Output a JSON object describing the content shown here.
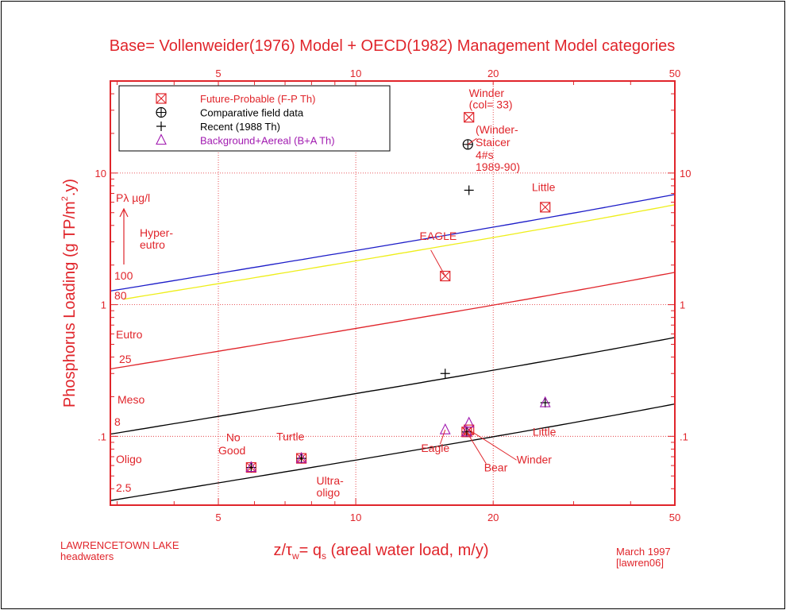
{
  "chart_data": {
    "type": "scatter",
    "title": "Base= Vollenweider(1976) Model + OECD(1982) Management Model categories",
    "xlabel_parts": [
      "z/",
      "τ",
      "w",
      "= q",
      "s",
      " (areal water load, m/y)"
    ],
    "ylabel_parts": [
      "Phosphorus Loading (g TP/m",
      "2",
      ".y)"
    ],
    "xscale": "log",
    "yscale": "log",
    "xlim": [
      2.9,
      50
    ],
    "ylim": [
      0.03,
      50
    ],
    "grid": true,
    "grid_style": "dotted red",
    "xticks": [
      {
        "value": 5,
        "label": "5"
      },
      {
        "value": 10,
        "label": "10"
      },
      {
        "value": 20,
        "label": "20"
      },
      {
        "value": 50,
        "label": "50"
      }
    ],
    "yticks": [
      {
        "value": 10,
        "label": "10"
      },
      {
        "value": 1,
        "label": "1"
      },
      {
        "value": 0.1,
        "label": ".1"
      }
    ],
    "legend_position": "top-left",
    "legend": [
      {
        "marker": "box-x",
        "label": "Future-Probable (F-P Th)",
        "color": "#e0252b"
      },
      {
        "marker": "circle-plus",
        "label": "Comparative field data",
        "color": "#000000"
      },
      {
        "marker": "plus",
        "label": "Recent (1988 Th)",
        "color": "#000000"
      },
      {
        "marker": "triangle",
        "label": "Background+Aereal (B+A Th)",
        "color": "#a11ab0"
      }
    ],
    "curves": [
      {
        "p_label": "100",
        "color": "#1c1cc8"
      },
      {
        "p_label": "80",
        "color": "#eeee1a"
      },
      {
        "p_label": "25",
        "color": "#e0252b"
      },
      {
        "p_label": "8",
        "color": "#000000"
      },
      {
        "p_label": "2.5",
        "color": "#000000"
      }
    ],
    "curve_param_label": "Pλ µg/l",
    "zones": [
      "Hyper-\neutro",
      "Eutro",
      "Meso",
      "Oligo"
    ],
    "series": [
      {
        "name": "Future-Probable (F-P Th)",
        "marker": "box-x",
        "points": [
          {
            "x": 17.7,
            "y": 26.5,
            "label": "Winder"
          },
          {
            "x": 15.7,
            "y": 1.65,
            "label": "EAGLE"
          },
          {
            "x": 26.0,
            "y": 5.5,
            "label": "Little"
          },
          {
            "x": 5.9,
            "y": 0.058,
            "label": "No Good"
          },
          {
            "x": 7.6,
            "y": 0.068,
            "label": "Turtle"
          },
          {
            "x": 17.5,
            "y": 0.108,
            "label": "Bear"
          },
          {
            "x": 17.7,
            "y": 0.112,
            "label": "Winder"
          }
        ]
      },
      {
        "name": "Comparative field data",
        "marker": "circle-plus",
        "points": [
          {
            "x": 17.6,
            "y": 16.5,
            "label": "Winder-Staicer"
          }
        ]
      },
      {
        "name": "Recent (1988 Th)",
        "marker": "plus",
        "points": [
          {
            "x": 17.7,
            "y": 7.4,
            "label": ""
          },
          {
            "x": 15.7,
            "y": 0.3,
            "label": "EAGLE"
          },
          {
            "x": 26.0,
            "y": 0.18,
            "label": "Little"
          },
          {
            "x": 5.9,
            "y": 0.058,
            "label": "No Good"
          },
          {
            "x": 7.6,
            "y": 0.068,
            "label": "Turtle"
          },
          {
            "x": 17.5,
            "y": 0.108,
            "label": "Bear"
          }
        ]
      },
      {
        "name": "Background+Aereal (B+A Th)",
        "marker": "triangle",
        "points": [
          {
            "x": 15.7,
            "y": 0.112,
            "label": "Eagle"
          },
          {
            "x": 17.7,
            "y": 0.126,
            "label": "Winder"
          },
          {
            "x": 26.0,
            "y": 0.18,
            "label": "Little"
          },
          {
            "x": 5.9,
            "y": 0.058,
            "label": "No Good"
          },
          {
            "x": 7.6,
            "y": 0.068,
            "label": "Turtle"
          },
          {
            "x": 17.5,
            "y": 0.108,
            "label": "Bear"
          }
        ]
      }
    ],
    "annotations": [
      {
        "text": "Winder",
        "x": 17.7,
        "y": 38
      },
      {
        "text": "(col= 33)",
        "x": 17.7,
        "y": 31
      },
      {
        "text": "(Winder-",
        "x": 18.3,
        "y": 20
      },
      {
        "text": "Staicer",
        "x": 18.3,
        "y": 16
      },
      {
        "text": "4#s",
        "x": 18.3,
        "y": 12.8
      },
      {
        "text": "1989-90)",
        "x": 18.3,
        "y": 10.4
      },
      {
        "text": "Little",
        "x": 24.3,
        "y": 7.3
      },
      {
        "text": "EAGLE",
        "x": 13.8,
        "y": 3.1
      },
      {
        "text": "Ultra-",
        "x": 8.2,
        "y": 0.043
      },
      {
        "text": "oligo",
        "x": 8.2,
        "y": 0.035
      },
      {
        "text": "No",
        "x": 5.2,
        "y": 0.092
      },
      {
        "text": "Good",
        "x": 5.0,
        "y": 0.073
      },
      {
        "text": "Turtle",
        "x": 6.7,
        "y": 0.093
      },
      {
        "text": "Little",
        "x": 24.4,
        "y": 0.101
      },
      {
        "text": "Eagle",
        "x": 13.9,
        "y": 0.076
      },
      {
        "text": "Winder",
        "x": 22.5,
        "y": 0.062
      },
      {
        "text": "Bear",
        "x": 19.1,
        "y": 0.054
      }
    ]
  },
  "footer": {
    "left_line1": "LAWRENCETOWN LAKE",
    "left_line2": "headwaters",
    "right_line1": "March 1997",
    "right_line2": "[lawren06]"
  },
  "colors": {
    "red": "#e0252b",
    "black": "#000000",
    "purple": "#a11ab0",
    "blue": "#1c1cc8",
    "yellow": "#eeee1a"
  }
}
